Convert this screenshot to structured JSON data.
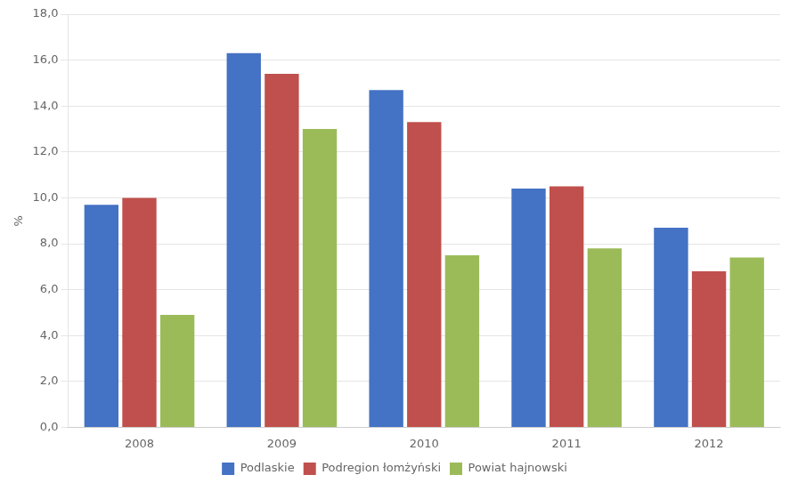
{
  "chart_data": {
    "type": "bar",
    "ylabel": "%",
    "categories": [
      "2008",
      "2009",
      "2010",
      "2011",
      "2012"
    ],
    "series": [
      {
        "name": "Podlaskie",
        "color": "#4472C4",
        "values": [
          9.7,
          16.3,
          14.7,
          10.4,
          8.7
        ]
      },
      {
        "name": "Podregion łomżyński",
        "color": "#C0504D",
        "values": [
          10.0,
          15.4,
          13.3,
          10.5,
          6.8
        ]
      },
      {
        "name": "Powiat hajnowski",
        "color": "#9BBB59",
        "values": [
          4.9,
          13.0,
          7.5,
          7.8,
          7.4
        ]
      }
    ],
    "ylim": [
      0,
      18.0
    ],
    "yticks": [
      {
        "value": 0.0,
        "label": "0,0"
      },
      {
        "value": 2.0,
        "label": "2,0"
      },
      {
        "value": 4.0,
        "label": "4,0"
      },
      {
        "value": 6.0,
        "label": "6,0"
      },
      {
        "value": 8.0,
        "label": "8,0"
      },
      {
        "value": 10.0,
        "label": "10,0"
      },
      {
        "value": 12.0,
        "label": "12,0"
      },
      {
        "value": 14.0,
        "label": "14,0"
      },
      {
        "value": 16.0,
        "label": "16,0"
      },
      {
        "value": 18.0,
        "label": "18,0"
      }
    ],
    "grid": true,
    "legend": "bottom"
  }
}
